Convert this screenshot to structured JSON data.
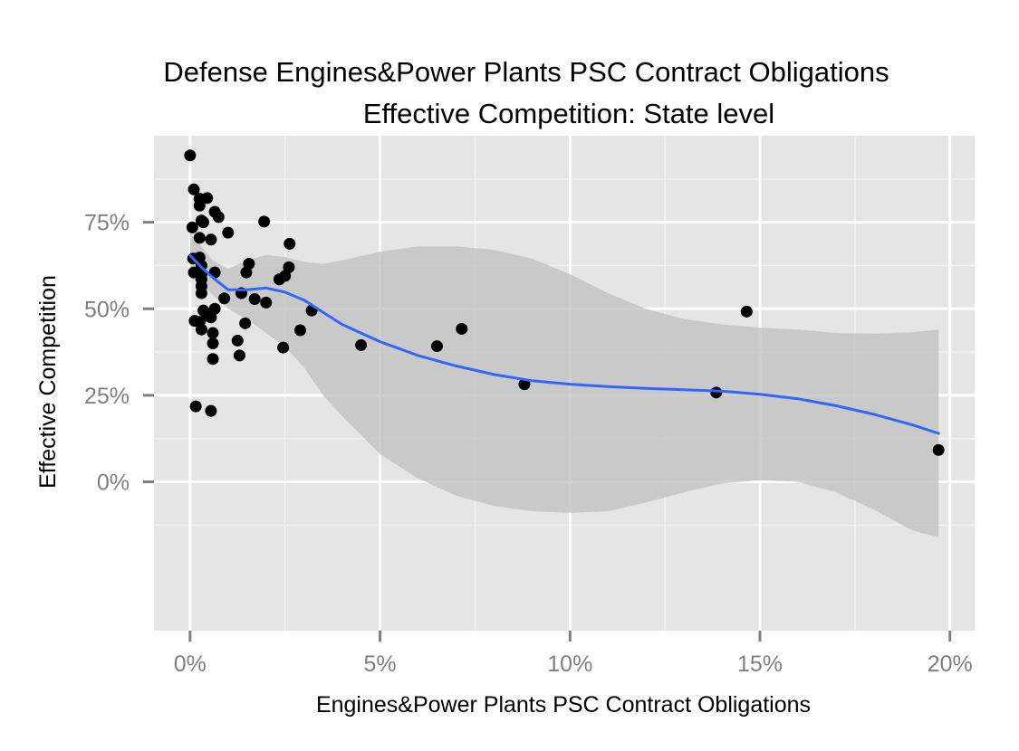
{
  "chart_data": {
    "type": "scatter",
    "title": "Defense Engines&Power Plants PSC Contract Obligations",
    "subtitle": "Effective Competition: State level",
    "xlabel": "Engines&Power Plants PSC Contract Obligations",
    "ylabel": "Effective Competition",
    "xlim": [
      -0.0095,
      0.2065
    ],
    "ylim": [
      -0.43,
      1.0
    ],
    "x_ticks": [
      {
        "value": 0.0,
        "label": "0%"
      },
      {
        "value": 0.05,
        "label": "5%"
      },
      {
        "value": 0.1,
        "label": "10%"
      },
      {
        "value": 0.15,
        "label": "15%"
      },
      {
        "value": 0.2,
        "label": "20%"
      }
    ],
    "y_ticks": [
      {
        "value": 0.0,
        "label": "0%"
      },
      {
        "value": 0.25,
        "label": "25%"
      },
      {
        "value": 0.5,
        "label": "50%"
      },
      {
        "value": 0.75,
        "label": "75%"
      }
    ],
    "grid": true,
    "colors": {
      "panel": "#e5e5e5",
      "grid": "#ffffff",
      "points": "#000000",
      "smooth_line": "#3366ff",
      "ribbon": "#bfbfbf",
      "tick_label": "#7f7f7f"
    },
    "points": [
      [
        0.0,
        0.943
      ],
      [
        0.0006,
        0.735
      ],
      [
        0.0008,
        0.645
      ],
      [
        0.001,
        0.605
      ],
      [
        0.0012,
        0.465
      ],
      [
        0.0015,
        0.218
      ],
      [
        0.001,
        0.845
      ],
      [
        0.0025,
        0.818
      ],
      [
        0.0025,
        0.798
      ],
      [
        0.003,
        0.755
      ],
      [
        0.0035,
        0.75
      ],
      [
        0.0025,
        0.705
      ],
      [
        0.0025,
        0.648
      ],
      [
        0.003,
        0.625
      ],
      [
        0.003,
        0.6
      ],
      [
        0.003,
        0.585
      ],
      [
        0.003,
        0.565
      ],
      [
        0.003,
        0.545
      ],
      [
        0.0025,
        0.462
      ],
      [
        0.003,
        0.44
      ],
      [
        0.0035,
        0.495
      ],
      [
        0.0045,
        0.48
      ],
      [
        0.0045,
        0.82
      ],
      [
        0.0055,
        0.7
      ],
      [
        0.0065,
        0.78
      ],
      [
        0.0075,
        0.765
      ],
      [
        0.0055,
        0.475
      ],
      [
        0.006,
        0.43
      ],
      [
        0.006,
        0.4
      ],
      [
        0.006,
        0.355
      ],
      [
        0.0055,
        0.205
      ],
      [
        0.0065,
        0.605
      ],
      [
        0.0065,
        0.5
      ],
      [
        0.009,
        0.53
      ],
      [
        0.01,
        0.72
      ],
      [
        0.0125,
        0.408
      ],
      [
        0.013,
        0.365
      ],
      [
        0.0135,
        0.545
      ],
      [
        0.0145,
        0.458
      ],
      [
        0.0148,
        0.605
      ],
      [
        0.0155,
        0.63
      ],
      [
        0.017,
        0.528
      ],
      [
        0.0195,
        0.752
      ],
      [
        0.02,
        0.518
      ],
      [
        0.0235,
        0.585
      ],
      [
        0.0245,
        0.388
      ],
      [
        0.025,
        0.595
      ],
      [
        0.026,
        0.62
      ],
      [
        0.0262,
        0.688
      ],
      [
        0.029,
        0.438
      ],
      [
        0.032,
        0.495
      ],
      [
        0.045,
        0.395
      ],
      [
        0.065,
        0.392
      ],
      [
        0.0715,
        0.442
      ],
      [
        0.088,
        0.282
      ],
      [
        0.1385,
        0.258
      ],
      [
        0.1465,
        0.492
      ],
      [
        0.197,
        0.092
      ]
    ],
    "smooth": {
      "x": [
        0.0,
        0.003,
        0.006,
        0.01,
        0.015,
        0.02,
        0.025,
        0.03,
        0.035,
        0.04,
        0.05,
        0.06,
        0.07,
        0.08,
        0.09,
        0.1,
        0.11,
        0.12,
        0.13,
        0.14,
        0.15,
        0.16,
        0.17,
        0.18,
        0.19,
        0.197
      ],
      "y": [
        0.655,
        0.62,
        0.59,
        0.555,
        0.555,
        0.56,
        0.548,
        0.525,
        0.49,
        0.455,
        0.405,
        0.365,
        0.335,
        0.31,
        0.292,
        0.282,
        0.275,
        0.27,
        0.266,
        0.262,
        0.253,
        0.24,
        0.22,
        0.195,
        0.165,
        0.14
      ],
      "ymin": [
        0.59,
        0.57,
        0.54,
        0.5,
        0.47,
        0.43,
        0.39,
        0.33,
        0.25,
        0.19,
        0.08,
        0.01,
        -0.04,
        -0.07,
        -0.085,
        -0.09,
        -0.085,
        -0.06,
        -0.03,
        -0.005,
        0.005,
        0.0,
        -0.03,
        -0.08,
        -0.14,
        -0.16
      ],
      "ymax": [
        0.72,
        0.68,
        0.64,
        0.615,
        0.64,
        0.655,
        0.65,
        0.635,
        0.63,
        0.64,
        0.665,
        0.68,
        0.68,
        0.67,
        0.645,
        0.6,
        0.545,
        0.5,
        0.47,
        0.455,
        0.445,
        0.44,
        0.43,
        0.428,
        0.432,
        0.44
      ]
    }
  }
}
